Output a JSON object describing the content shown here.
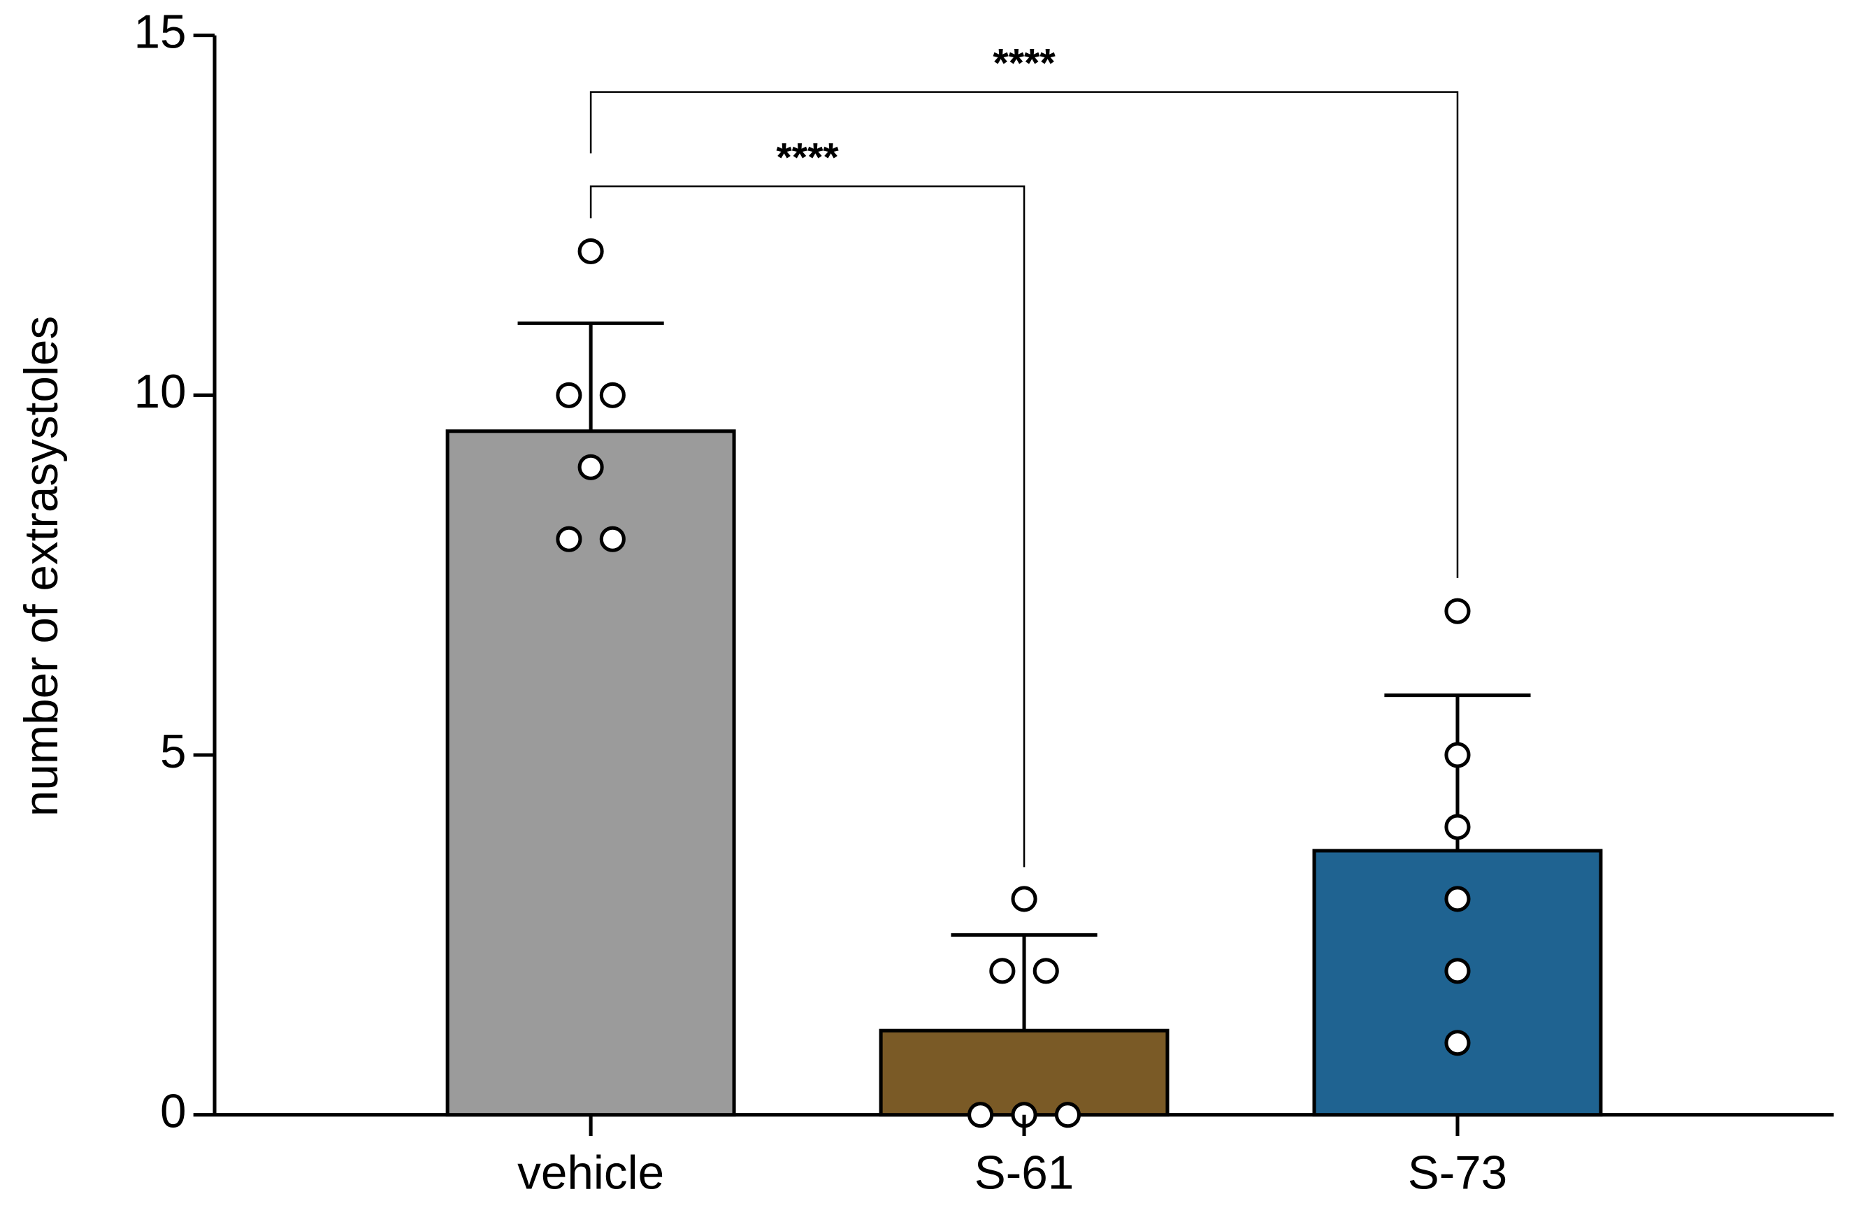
{
  "chart_data": {
    "type": "bar",
    "ylabel": "number of extrasystoles",
    "categories": [
      "vehicle",
      "S-61",
      "S-73"
    ],
    "values": [
      9.5,
      1.17,
      3.67
    ],
    "errors": [
      1.5,
      1.33,
      2.16
    ],
    "colors": [
      "#9b9b9b",
      "#7a5a26",
      "#1f6391"
    ],
    "points": [
      [
        12,
        10,
        10,
        9,
        8,
        8
      ],
      [
        3,
        2,
        2,
        0,
        0,
        0
      ],
      [
        7,
        5,
        4,
        3,
        2,
        1
      ]
    ],
    "ylim": [
      0,
      15
    ],
    "yticks": [
      0,
      5,
      10,
      15
    ],
    "significance": [
      {
        "from": 0,
        "to": 1,
        "label": "****"
      },
      {
        "from": 0,
        "to": 2,
        "label": "****"
      }
    ]
  }
}
